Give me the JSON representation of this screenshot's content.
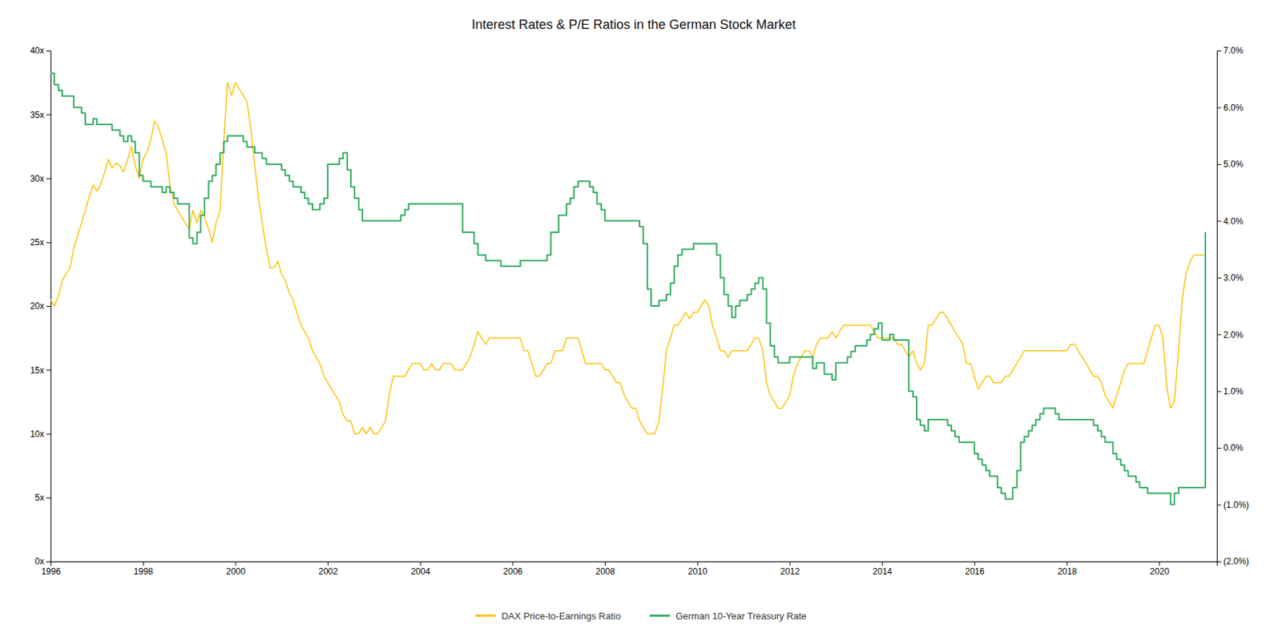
{
  "chart_data": {
    "type": "line",
    "title": "Interest Rates & P/E Ratios in the German Stock Market",
    "grid": false,
    "legend": "bottom",
    "xlim": [
      1996.0,
      2021.25
    ],
    "xticks": [
      1996,
      1998,
      2000,
      2002,
      2004,
      2006,
      2008,
      2010,
      2012,
      2014,
      2016,
      2018,
      2020
    ],
    "ylim": [
      0,
      40
    ],
    "yticks": [
      {
        "value": 0,
        "label": "0x"
      },
      {
        "value": 5,
        "label": "5x"
      },
      {
        "value": 10,
        "label": "10x"
      },
      {
        "value": 15,
        "label": "15x"
      },
      {
        "value": 20,
        "label": "20x"
      },
      {
        "value": 25,
        "label": "25x"
      },
      {
        "value": 30,
        "label": "30x"
      },
      {
        "value": 35,
        "label": "35x"
      },
      {
        "value": 40,
        "label": "40x"
      }
    ],
    "y2lim": [
      -0.02,
      0.07
    ],
    "y2ticks": [
      {
        "value": -0.02,
        "label": "(2.0%)"
      },
      {
        "value": -0.01,
        "label": "(1.0%)"
      },
      {
        "value": 0.0,
        "label": "0.0%"
      },
      {
        "value": 0.01,
        "label": "1.0%"
      },
      {
        "value": 0.02,
        "label": "2.0%"
      },
      {
        "value": 0.03,
        "label": "3.0%"
      },
      {
        "value": 0.04,
        "label": "4.0%"
      },
      {
        "value": 0.05,
        "label": "5.0%"
      },
      {
        "value": 0.06,
        "label": "6.0%"
      },
      {
        "value": 0.07,
        "label": "7.0%"
      }
    ],
    "x": [
      1996.0,
      1996.08,
      1996.17,
      1996.25,
      1996.33,
      1996.42,
      1996.5,
      1996.58,
      1996.67,
      1996.75,
      1996.83,
      1996.92,
      1997.0,
      1997.08,
      1997.17,
      1997.25,
      1997.33,
      1997.42,
      1997.5,
      1997.58,
      1997.67,
      1997.75,
      1997.83,
      1997.92,
      1998.0,
      1998.08,
      1998.17,
      1998.25,
      1998.33,
      1998.42,
      1998.5,
      1998.58,
      1998.67,
      1998.75,
      1998.83,
      1998.92,
      1999.0,
      1999.08,
      1999.17,
      1999.25,
      1999.33,
      1999.42,
      1999.5,
      1999.58,
      1999.67,
      1999.75,
      1999.83,
      1999.92,
      2000.0,
      2000.08,
      2000.17,
      2000.25,
      2000.33,
      2000.42,
      2000.5,
      2000.58,
      2000.67,
      2000.75,
      2000.83,
      2000.92,
      2001.0,
      2001.08,
      2001.17,
      2001.25,
      2001.33,
      2001.42,
      2001.5,
      2001.58,
      2001.67,
      2001.75,
      2001.83,
      2001.92,
      2002.0,
      2002.08,
      2002.17,
      2002.25,
      2002.33,
      2002.42,
      2002.5,
      2002.58,
      2002.67,
      2002.75,
      2002.83,
      2002.92,
      2003.0,
      2003.08,
      2003.17,
      2003.25,
      2003.33,
      2003.42,
      2003.5,
      2003.58,
      2003.67,
      2003.75,
      2003.83,
      2003.92,
      2004.0,
      2004.08,
      2004.17,
      2004.25,
      2004.33,
      2004.42,
      2004.5,
      2004.58,
      2004.67,
      2004.75,
      2004.83,
      2004.92,
      2005.0,
      2005.08,
      2005.17,
      2005.25,
      2005.33,
      2005.42,
      2005.5,
      2005.58,
      2005.67,
      2005.75,
      2005.83,
      2005.92,
      2006.0,
      2006.08,
      2006.17,
      2006.25,
      2006.33,
      2006.42,
      2006.5,
      2006.58,
      2006.67,
      2006.75,
      2006.83,
      2006.92,
      2007.0,
      2007.08,
      2007.17,
      2007.25,
      2007.33,
      2007.42,
      2007.5,
      2007.58,
      2007.67,
      2007.75,
      2007.83,
      2007.92,
      2008.0,
      2008.08,
      2008.17,
      2008.25,
      2008.33,
      2008.42,
      2008.5,
      2008.58,
      2008.67,
      2008.75,
      2008.83,
      2008.92,
      2009.0,
      2009.08,
      2009.17,
      2009.25,
      2009.33,
      2009.42,
      2009.5,
      2009.58,
      2009.67,
      2009.75,
      2009.83,
      2009.92,
      2010.0,
      2010.08,
      2010.17,
      2010.25,
      2010.33,
      2010.42,
      2010.5,
      2010.58,
      2010.67,
      2010.75,
      2010.83,
      2010.92,
      2011.0,
      2011.08,
      2011.17,
      2011.25,
      2011.33,
      2011.42,
      2011.5,
      2011.58,
      2011.67,
      2011.75,
      2011.83,
      2011.92,
      2012.0,
      2012.08,
      2012.17,
      2012.25,
      2012.33,
      2012.42,
      2012.5,
      2012.58,
      2012.67,
      2012.75,
      2012.83,
      2012.92,
      2013.0,
      2013.08,
      2013.17,
      2013.25,
      2013.33,
      2013.42,
      2013.5,
      2013.58,
      2013.67,
      2013.75,
      2013.83,
      2013.92,
      2014.0,
      2014.08,
      2014.17,
      2014.25,
      2014.33,
      2014.42,
      2014.5,
      2014.58,
      2014.67,
      2014.75,
      2014.83,
      2014.92,
      2015.0,
      2015.08,
      2015.17,
      2015.25,
      2015.33,
      2015.42,
      2015.5,
      2015.58,
      2015.67,
      2015.75,
      2015.83,
      2015.92,
      2016.0,
      2016.08,
      2016.17,
      2016.25,
      2016.33,
      2016.42,
      2016.5,
      2016.58,
      2016.67,
      2016.75,
      2016.83,
      2016.92,
      2017.0,
      2017.08,
      2017.17,
      2017.25,
      2017.33,
      2017.42,
      2017.5,
      2017.58,
      2017.67,
      2017.75,
      2017.83,
      2017.92,
      2018.0,
      2018.08,
      2018.17,
      2018.25,
      2018.33,
      2018.42,
      2018.5,
      2018.58,
      2018.67,
      2018.75,
      2018.83,
      2018.92,
      2019.0,
      2019.08,
      2019.17,
      2019.25,
      2019.33,
      2019.42,
      2019.5,
      2019.58,
      2019.67,
      2019.75,
      2019.83,
      2019.92,
      2020.0,
      2020.08,
      2020.17,
      2020.25,
      2020.33,
      2020.42,
      2020.5,
      2020.58,
      2020.67,
      2020.75,
      2020.83,
      2020.92,
      2021.0
    ],
    "series": [
      {
        "name": "DAX Price-to-Earnings Ratio",
        "color": "#FFC000",
        "type": "line",
        "values": [
          20.5,
          20.0,
          20.8,
          22.0,
          22.5,
          23.0,
          24.5,
          25.5,
          26.5,
          27.5,
          28.5,
          29.5,
          29.0,
          29.5,
          30.5,
          31.5,
          30.8,
          31.2,
          31.0,
          30.5,
          31.5,
          32.5,
          31.0,
          30.0,
          31.5,
          32.0,
          33.0,
          34.5,
          34.0,
          33.0,
          32.0,
          29.5,
          28.0,
          27.5,
          27.0,
          26.5,
          26.0,
          27.5,
          26.5,
          27.5,
          27.0,
          26.0,
          25.0,
          26.5,
          27.5,
          33.0,
          37.5,
          36.5,
          37.5,
          37.0,
          36.5,
          36.0,
          34.0,
          31.0,
          28.5,
          26.5,
          24.5,
          23.0,
          23.0,
          23.5,
          22.5,
          22.0,
          21.0,
          20.5,
          19.5,
          18.5,
          18.0,
          17.5,
          16.5,
          16.0,
          15.5,
          14.5,
          14.0,
          13.5,
          13.0,
          12.5,
          11.5,
          11.0,
          11.0,
          10.0,
          10.0,
          10.5,
          10.0,
          10.5,
          10.0,
          10.0,
          10.5,
          11.0,
          13.0,
          14.5,
          14.5,
          14.5,
          14.5,
          15.0,
          15.5,
          15.5,
          15.5,
          15.0,
          15.0,
          15.5,
          15.0,
          15.0,
          15.5,
          15.5,
          15.5,
          15.0,
          15.0,
          15.0,
          15.5,
          16.0,
          17.0,
          18.0,
          17.5,
          17.0,
          17.5,
          17.5,
          17.5,
          17.5,
          17.5,
          17.5,
          17.5,
          17.5,
          17.5,
          16.5,
          16.5,
          15.5,
          14.5,
          14.5,
          15.0,
          15.5,
          15.5,
          16.5,
          16.5,
          16.5,
          17.5,
          17.5,
          17.5,
          17.5,
          16.5,
          15.5,
          15.5,
          15.5,
          15.5,
          15.5,
          15.0,
          15.0,
          14.5,
          14.0,
          14.0,
          13.0,
          12.5,
          12.0,
          12.0,
          11.0,
          10.5,
          10.0,
          10.0,
          10.0,
          11.0,
          13.5,
          16.5,
          17.5,
          18.5,
          18.5,
          19.0,
          19.5,
          19.0,
          19.5,
          19.5,
          20.0,
          20.5,
          20.0,
          18.5,
          17.5,
          16.5,
          16.5,
          16.0,
          16.5,
          16.5,
          16.5,
          16.5,
          16.5,
          17.0,
          17.5,
          17.5,
          16.5,
          14.0,
          13.0,
          12.5,
          12.0,
          12.0,
          12.5,
          13.0,
          14.5,
          15.5,
          16.0,
          16.5,
          16.5,
          16.0,
          17.0,
          17.5,
          17.5,
          17.5,
          18.0,
          17.5,
          18.0,
          18.5,
          18.5,
          18.5,
          18.5,
          18.5,
          18.5,
          18.5,
          18.5,
          18.0,
          17.5,
          17.5,
          17.5,
          17.5,
          17.5,
          17.0,
          17.0,
          16.5,
          16.0,
          16.5,
          15.5,
          15.0,
          15.5,
          18.5,
          18.5,
          19.0,
          19.5,
          19.5,
          19.0,
          18.5,
          18.0,
          17.5,
          17.0,
          15.5,
          15.5,
          14.5,
          13.5,
          14.0,
          14.5,
          14.5,
          14.0,
          14.0,
          14.0,
          14.5,
          14.5,
          15.0,
          15.5,
          16.0,
          16.5,
          16.5,
          16.5,
          16.5,
          16.5,
          16.5,
          16.5,
          16.5,
          16.5,
          16.5,
          16.5,
          16.5,
          17.0,
          17.0,
          16.5,
          16.0,
          15.5,
          15.0,
          14.5,
          14.5,
          14.0,
          13.0,
          12.5,
          12.0,
          13.0,
          14.0,
          15.0,
          15.5,
          15.5,
          15.5,
          15.5,
          15.5,
          16.5,
          17.5,
          18.5,
          18.5,
          17.5,
          13.5,
          12.0,
          12.5,
          16.5,
          20.5,
          22.5,
          23.5,
          24.0,
          24.0,
          24.0,
          24.0
        ]
      },
      {
        "name": "German 10-Year Treasury Rate",
        "color": "#2EAA5E",
        "type": "step",
        "axis": "y2",
        "values": [
          0.066,
          0.064,
          0.063,
          0.062,
          0.062,
          0.062,
          0.06,
          0.06,
          0.059,
          0.057,
          0.057,
          0.058,
          0.057,
          0.057,
          0.057,
          0.057,
          0.056,
          0.056,
          0.055,
          0.054,
          0.055,
          0.054,
          0.052,
          0.048,
          0.047,
          0.047,
          0.046,
          0.046,
          0.046,
          0.045,
          0.046,
          0.045,
          0.044,
          0.043,
          0.043,
          0.043,
          0.037,
          0.036,
          0.038,
          0.041,
          0.044,
          0.047,
          0.048,
          0.05,
          0.052,
          0.054,
          0.055,
          0.055,
          0.055,
          0.055,
          0.054,
          0.053,
          0.053,
          0.052,
          0.052,
          0.051,
          0.05,
          0.05,
          0.05,
          0.05,
          0.049,
          0.048,
          0.047,
          0.046,
          0.046,
          0.045,
          0.044,
          0.043,
          0.042,
          0.042,
          0.043,
          0.044,
          0.05,
          0.05,
          0.05,
          0.051,
          0.052,
          0.049,
          0.046,
          0.044,
          0.042,
          0.04,
          0.04,
          0.04,
          0.04,
          0.04,
          0.04,
          0.04,
          0.04,
          0.04,
          0.04,
          0.041,
          0.042,
          0.043,
          0.043,
          0.043,
          0.043,
          0.043,
          0.043,
          0.043,
          0.043,
          0.043,
          0.043,
          0.043,
          0.043,
          0.043,
          0.043,
          0.038,
          0.038,
          0.038,
          0.036,
          0.034,
          0.034,
          0.033,
          0.033,
          0.033,
          0.033,
          0.032,
          0.032,
          0.032,
          0.032,
          0.032,
          0.033,
          0.033,
          0.033,
          0.033,
          0.033,
          0.033,
          0.033,
          0.034,
          0.038,
          0.038,
          0.041,
          0.041,
          0.043,
          0.044,
          0.046,
          0.047,
          0.047,
          0.047,
          0.046,
          0.045,
          0.043,
          0.042,
          0.04,
          0.04,
          0.04,
          0.04,
          0.04,
          0.04,
          0.04,
          0.04,
          0.04,
          0.039,
          0.036,
          0.028,
          0.025,
          0.025,
          0.026,
          0.026,
          0.027,
          0.029,
          0.032,
          0.034,
          0.035,
          0.035,
          0.035,
          0.036,
          0.036,
          0.036,
          0.036,
          0.036,
          0.036,
          0.034,
          0.03,
          0.027,
          0.025,
          0.023,
          0.025,
          0.026,
          0.026,
          0.027,
          0.028,
          0.029,
          0.03,
          0.028,
          0.022,
          0.018,
          0.016,
          0.015,
          0.015,
          0.015,
          0.016,
          0.016,
          0.016,
          0.016,
          0.016,
          0.016,
          0.014,
          0.015,
          0.015,
          0.013,
          0.013,
          0.012,
          0.015,
          0.015,
          0.015,
          0.016,
          0.017,
          0.018,
          0.018,
          0.018,
          0.019,
          0.02,
          0.021,
          0.022,
          0.019,
          0.019,
          0.02,
          0.019,
          0.019,
          0.019,
          0.019,
          0.01,
          0.009,
          0.005,
          0.004,
          0.003,
          0.005,
          0.005,
          0.005,
          0.005,
          0.005,
          0.004,
          0.003,
          0.002,
          0.001,
          0.001,
          0.001,
          0.001,
          -0.001,
          -0.002,
          -0.003,
          -0.004,
          -0.005,
          -0.005,
          -0.007,
          -0.008,
          -0.009,
          -0.009,
          -0.007,
          -0.004,
          0.001,
          0.002,
          0.003,
          0.004,
          0.005,
          0.006,
          0.007,
          0.007,
          0.007,
          0.006,
          0.005,
          0.005,
          0.005,
          0.005,
          0.005,
          0.005,
          0.005,
          0.005,
          0.005,
          0.004,
          0.003,
          0.002,
          0.001,
          0.001,
          -0.001,
          -0.002,
          -0.003,
          -0.004,
          -0.005,
          -0.005,
          -0.006,
          -0.007,
          -0.007,
          -0.008,
          -0.008,
          -0.008,
          -0.008,
          -0.008,
          -0.008,
          -0.01,
          -0.008,
          -0.007,
          -0.007,
          -0.007,
          -0.007,
          -0.007,
          -0.007,
          -0.007,
          0.038
        ]
      }
    ]
  }
}
